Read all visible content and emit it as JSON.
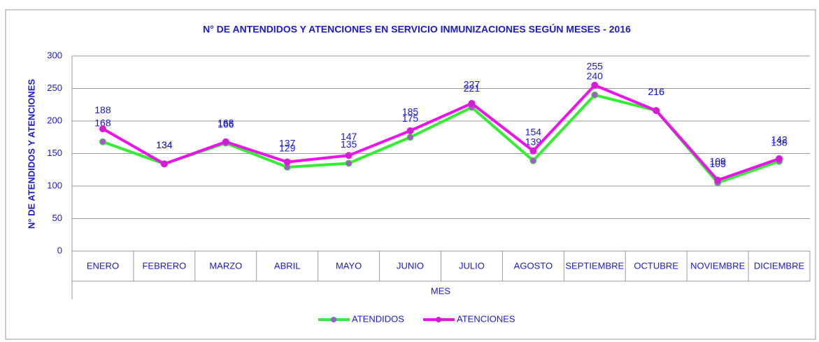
{
  "chart_data": {
    "type": "line",
    "title": "N° DE ANTENDIDOS Y ATENCIONES EN SERVICIO INMUNIZACIONES SEGÚN MESES - 2016",
    "x_label": "MES",
    "y_label": "N° DE ATENDIDOS Y ATENCIONES",
    "categories": [
      "ENERO",
      "FEBRERO",
      "MARZO",
      "ABRIL",
      "MAYO",
      "JUNIO",
      "JULIO",
      "AGOSTO",
      "SEPTIEMBRE",
      "OCTUBRE",
      "NOVIEMBRE",
      "DICIEMBRE"
    ],
    "series": [
      {
        "name": "ATENDIDOS",
        "color": "#33ee33",
        "marker_color": "#aa55cc",
        "values": [
          168,
          134,
          166,
          129,
          135,
          175,
          221,
          139,
          240,
          216,
          105,
          138
        ]
      },
      {
        "name": "ATENCIONES",
        "color": "#ee11ee",
        "marker_color": "#cc22cc",
        "values": [
          188,
          134,
          168,
          137,
          147,
          185,
          227,
          154,
          255,
          216,
          109,
          142
        ]
      }
    ],
    "ylim": [
      0,
      300
    ],
    "yticks": [
      0,
      50,
      100,
      150,
      200,
      250,
      300
    ],
    "grid": true,
    "legend": "bottom"
  }
}
